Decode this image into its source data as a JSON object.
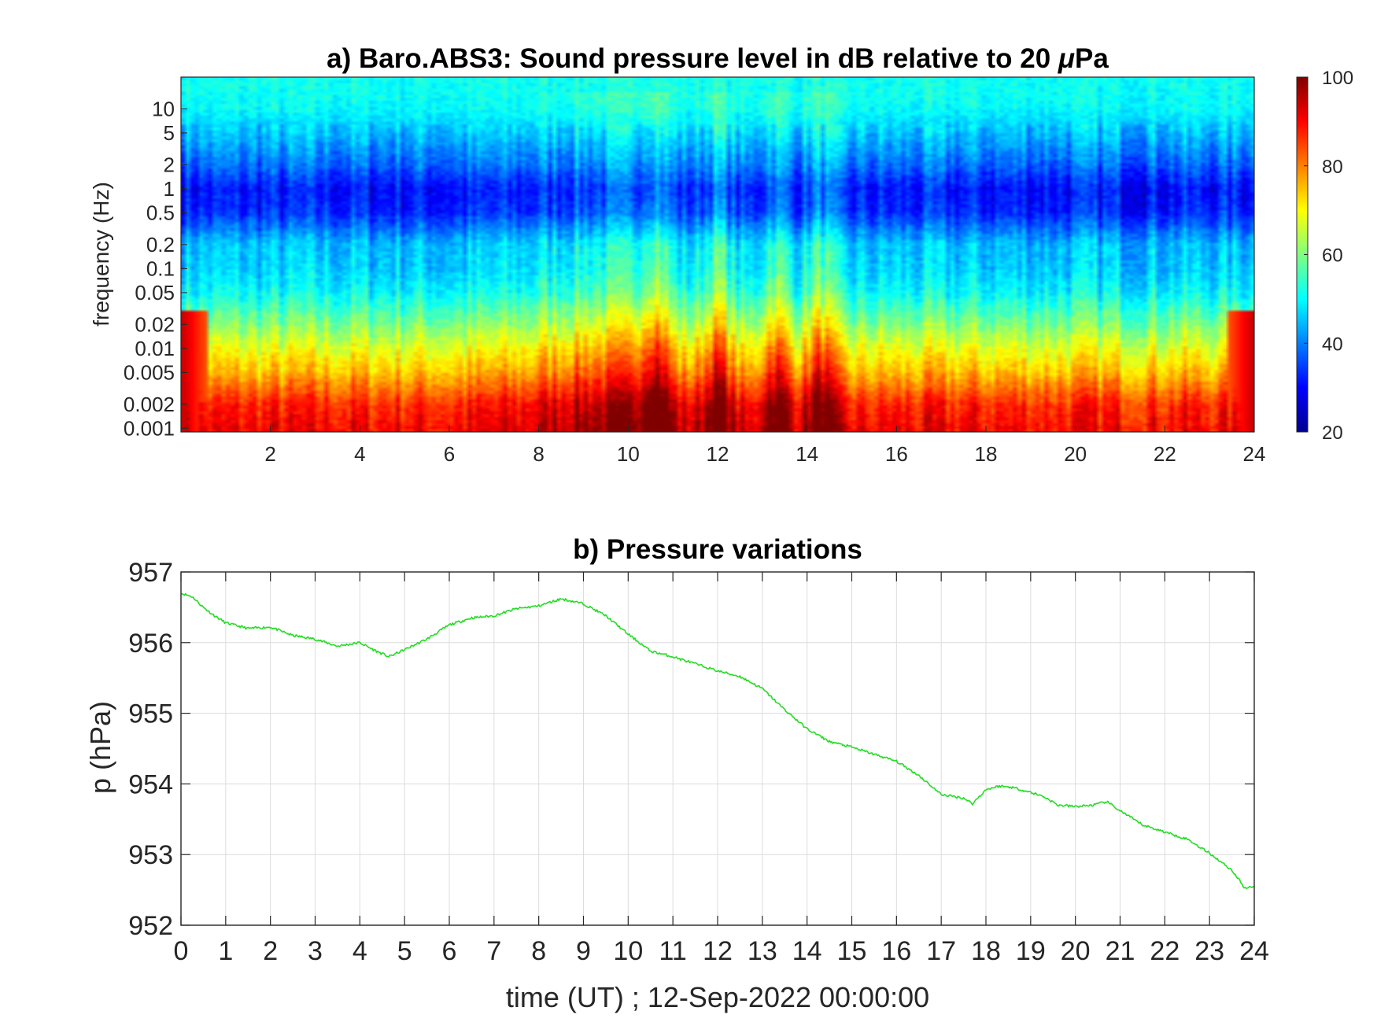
{
  "chart_data": [
    {
      "type": "heatmap",
      "title": "a) Baro.ABS3: Sound pressure level in dB relative to 20 μPa",
      "title_prefix": "a) Baro.ABS3: Sound pressure level in dB relative to 20 ",
      "title_unit_symbol": "μ",
      "title_unit_suffix": "Pa",
      "xlabel": "",
      "ylabel": "frequency (Hz)",
      "x_ticks": [
        "2",
        "4",
        "6",
        "8",
        "10",
        "12",
        "14",
        "16",
        "18",
        "20",
        "22",
        "24"
      ],
      "x_tick_values": [
        2,
        4,
        6,
        8,
        10,
        12,
        14,
        16,
        18,
        20,
        22,
        24
      ],
      "xlim": [
        0,
        24
      ],
      "y_scale": "log",
      "y_ticks": [
        "10",
        "5",
        "2",
        "1",
        "0.5",
        "0.2",
        "0.1",
        "0.05",
        "0.02",
        "0.01",
        "0.005",
        "0.002",
        "0.001"
      ],
      "y_tick_values": [
        10,
        5,
        2,
        1,
        0.5,
        0.2,
        0.1,
        0.05,
        0.02,
        0.01,
        0.005,
        0.002,
        0.001
      ],
      "ylim": [
        0.0009,
        25
      ],
      "colormap": "jet",
      "colorbar": {
        "ticks": [
          "100",
          "80",
          "60",
          "40",
          "20"
        ],
        "tick_values": [
          100,
          80,
          60,
          40,
          20
        ],
        "range": [
          20,
          100
        ],
        "placement": "right"
      },
      "level_profile_db": {
        "frequency_hz": [
          0.001,
          0.002,
          0.005,
          0.01,
          0.02,
          0.05,
          0.1,
          0.2,
          0.5,
          1,
          2,
          5,
          10,
          20
        ],
        "typical_db": [
          90,
          87,
          75,
          68,
          60,
          50,
          46,
          45,
          33,
          31,
          38,
          45,
          50,
          51
        ]
      },
      "active_periods_ut": [
        10.6,
        12.0,
        13.3,
        14.3
      ],
      "grid": false
    },
    {
      "type": "line",
      "title": "b) Pressure variations",
      "xlabel": "time (UT) ; 12-Sep-2022 00:00:00",
      "ylabel": "p (hPa)",
      "x_ticks": [
        "0",
        "1",
        "2",
        "3",
        "4",
        "5",
        "6",
        "7",
        "8",
        "9",
        "10",
        "11",
        "12",
        "13",
        "14",
        "15",
        "16",
        "17",
        "18",
        "19",
        "20",
        "21",
        "22",
        "23",
        "24"
      ],
      "y_ticks": [
        "957",
        "956",
        "955",
        "954",
        "953",
        "952"
      ],
      "y_tick_values": [
        957,
        956,
        955,
        954,
        953,
        952
      ],
      "xlim": [
        0,
        24
      ],
      "ylim": [
        952,
        957
      ],
      "grid": true,
      "series": [
        {
          "color": "#22dd22",
          "x": [
            0,
            0.25,
            0.5,
            0.75,
            1,
            1.5,
            2,
            2.5,
            3,
            3.5,
            4,
            4.3,
            4.65,
            5,
            5.5,
            6,
            6.5,
            7,
            7.5,
            8,
            8.5,
            9,
            9.5,
            10,
            10.5,
            11,
            11.5,
            12,
            12.5,
            13,
            13.5,
            14,
            14.5,
            15,
            15.5,
            16,
            16.5,
            17,
            17.5,
            17.7,
            18,
            18.3,
            18.6,
            19,
            19.3,
            19.6,
            20,
            20.4,
            20.7,
            21,
            21.5,
            22,
            22.5,
            23,
            23.5,
            23.8,
            24
          ],
          "y": [
            956.7,
            956.65,
            956.5,
            956.38,
            956.28,
            956.2,
            956.22,
            956.1,
            956.05,
            955.95,
            956.0,
            955.9,
            955.8,
            955.9,
            956.05,
            956.25,
            956.35,
            956.38,
            956.48,
            956.52,
            956.62,
            956.55,
            956.38,
            956.12,
            955.88,
            955.8,
            955.7,
            955.6,
            955.52,
            955.35,
            955.05,
            954.78,
            954.6,
            954.52,
            954.42,
            954.32,
            954.12,
            953.85,
            953.8,
            953.72,
            953.92,
            953.97,
            953.95,
            953.88,
            953.82,
            953.7,
            953.68,
            953.7,
            953.75,
            953.62,
            953.42,
            953.32,
            953.22,
            953.02,
            952.78,
            952.52,
            952.55
          ]
        }
      ]
    }
  ]
}
